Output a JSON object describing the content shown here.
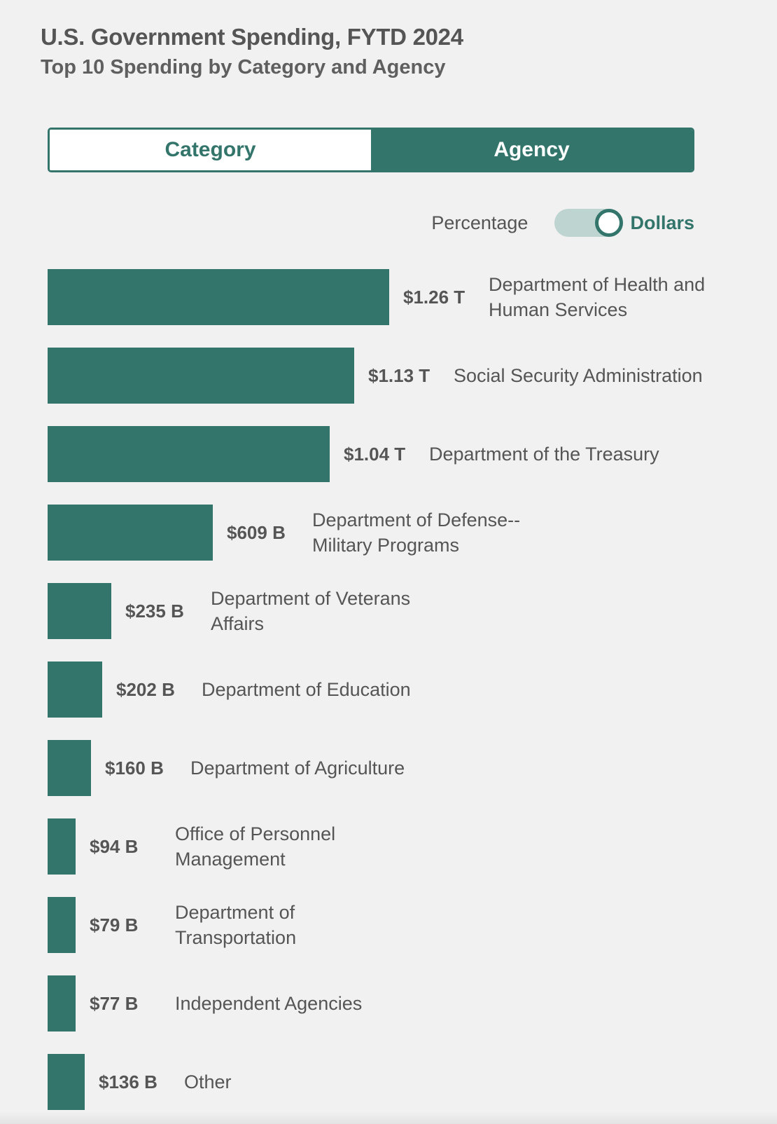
{
  "header": {
    "title": "U.S. Government Spending, FYTD 2024",
    "subtitle": "Top 10 Spending by Category and Agency"
  },
  "tabs": [
    {
      "label": "Category",
      "active": false
    },
    {
      "label": "Agency",
      "active": true
    }
  ],
  "toggle": {
    "left_label": "Percentage",
    "right_label": "Dollars",
    "selected": "Dollars"
  },
  "colors": {
    "accent": "#33756b",
    "text": "#555555",
    "background": "#f1f1f1"
  },
  "chart_data": {
    "type": "bar",
    "orientation": "horizontal",
    "unit": "USD",
    "categories": [
      "Department of Health and Human Services",
      "Social Security Administration",
      "Department of the Treasury",
      "Department of Defense--Military Programs",
      "Department of Veterans Affairs",
      "Department of Education",
      "Department of Agriculture",
      "Office of Personnel Management",
      "Department of Transportation",
      "Independent Agencies",
      "Other"
    ],
    "values": [
      1260,
      1130,
      1040,
      609,
      235,
      202,
      160,
      94,
      79,
      77,
      136
    ],
    "value_unit": "billions USD",
    "value_labels": [
      "$1.26 T",
      "$1.13 T",
      "$1.04 T",
      "$609 B",
      "$235 B",
      "$202 B",
      "$160 B",
      "$94 B",
      "$79 B",
      "$77 B",
      "$136 B"
    ],
    "xlim": [
      0,
      1260
    ]
  }
}
